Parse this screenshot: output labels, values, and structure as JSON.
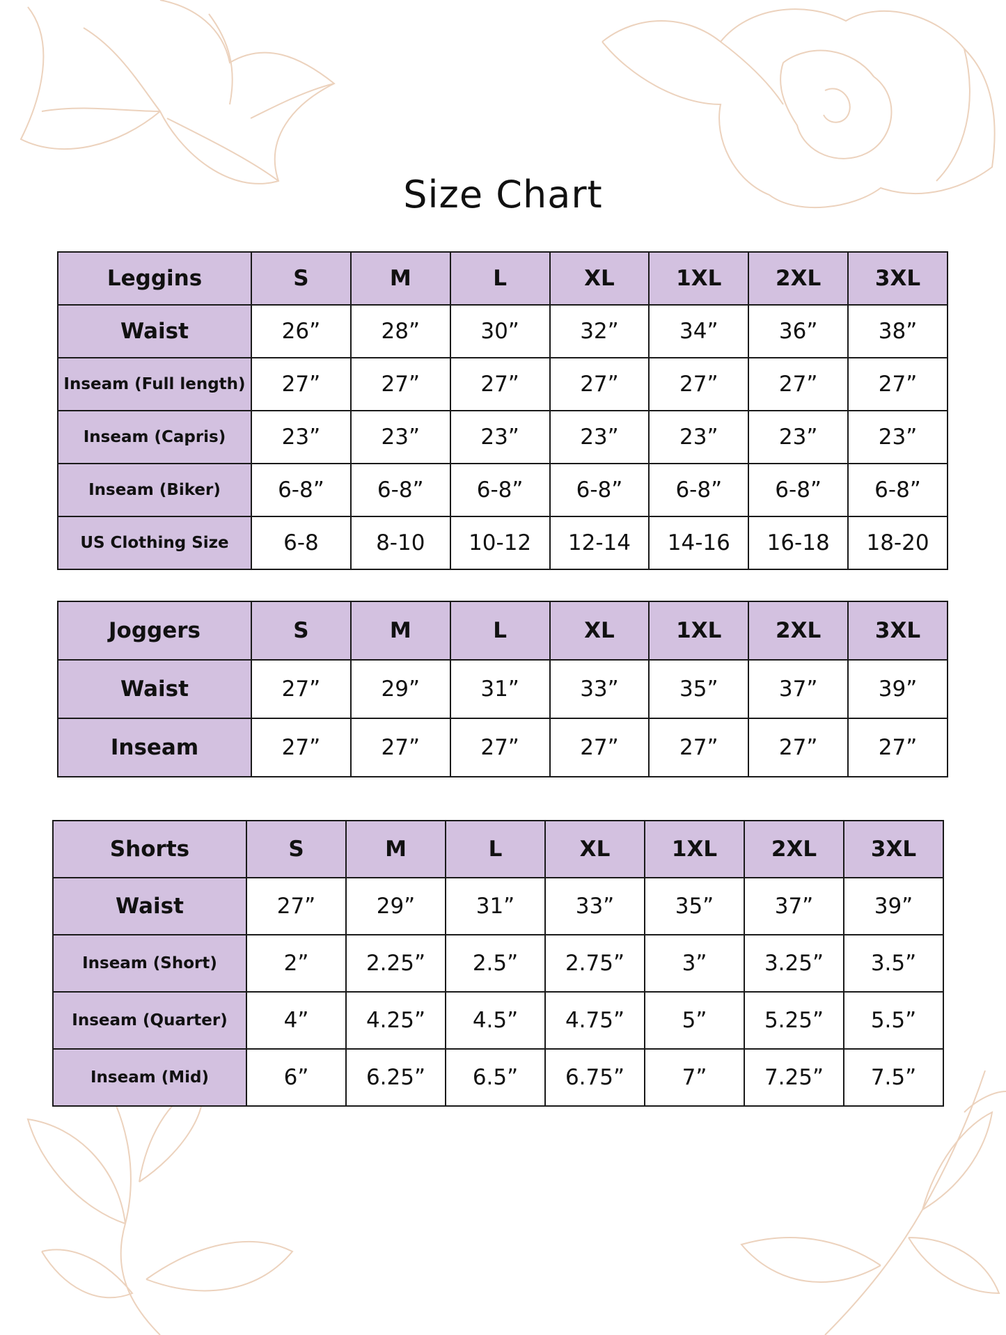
{
  "title": "Size Chart",
  "colors": {
    "header_fill": "#d3c1e0",
    "border": "#1a1a1a",
    "floral_line": "#ecd2bd"
  },
  "tables": [
    {
      "id": "leggins",
      "name": "Leggins",
      "sizes": [
        "S",
        "M",
        "L",
        "XL",
        "1XL",
        "2XL",
        "3XL"
      ],
      "rows": [
        {
          "label": "Waist",
          "values": [
            "26”",
            "28”",
            "30”",
            "32”",
            "34”",
            "36”",
            "38”"
          ]
        },
        {
          "label": "Inseam (Full length)",
          "values": [
            "27”",
            "27”",
            "27”",
            "27”",
            "27”",
            "27”",
            "27”"
          ]
        },
        {
          "label": "Inseam (Capris)",
          "values": [
            "23”",
            "23”",
            "23”",
            "23”",
            "23”",
            "23”",
            "23”"
          ]
        },
        {
          "label": "Inseam (Biker)",
          "values": [
            "6-8”",
            "6-8”",
            "6-8”",
            "6-8”",
            "6-8”",
            "6-8”",
            "6-8”"
          ]
        },
        {
          "label": "US Clothing Size",
          "values": [
            "6-8",
            "8-10",
            "10-12",
            "12-14",
            "14-16",
            "16-18",
            "18-20"
          ]
        }
      ]
    },
    {
      "id": "joggers",
      "name": "Joggers",
      "sizes": [
        "S",
        "M",
        "L",
        "XL",
        "1XL",
        "2XL",
        "3XL"
      ],
      "rows": [
        {
          "label": "Waist",
          "values": [
            "27”",
            "29”",
            "31”",
            "33”",
            "35”",
            "37”",
            "39”"
          ]
        },
        {
          "label": "Inseam",
          "values": [
            "27”",
            "27”",
            "27”",
            "27”",
            "27”",
            "27”",
            "27”"
          ]
        }
      ]
    },
    {
      "id": "shorts",
      "name": "Shorts",
      "sizes": [
        "S",
        "M",
        "L",
        "XL",
        "1XL",
        "2XL",
        "3XL"
      ],
      "rows": [
        {
          "label": "Waist",
          "values": [
            "27”",
            "29”",
            "31”",
            "33”",
            "35”",
            "37”",
            "39”"
          ]
        },
        {
          "label": "Inseam (Short)",
          "values": [
            "2”",
            "2.25”",
            "2.5”",
            "2.75”",
            "3”",
            "3.25”",
            "3.5”"
          ]
        },
        {
          "label": "Inseam (Quarter)",
          "values": [
            "4”",
            "4.25”",
            "4.5”",
            "4.75”",
            "5”",
            "5.25”",
            "5.5”"
          ]
        },
        {
          "label": "Inseam (Mid)",
          "values": [
            "6”",
            "6.25”",
            "6.5”",
            "6.75”",
            "7”",
            "7.25”",
            "7.5”"
          ]
        }
      ]
    }
  ]
}
